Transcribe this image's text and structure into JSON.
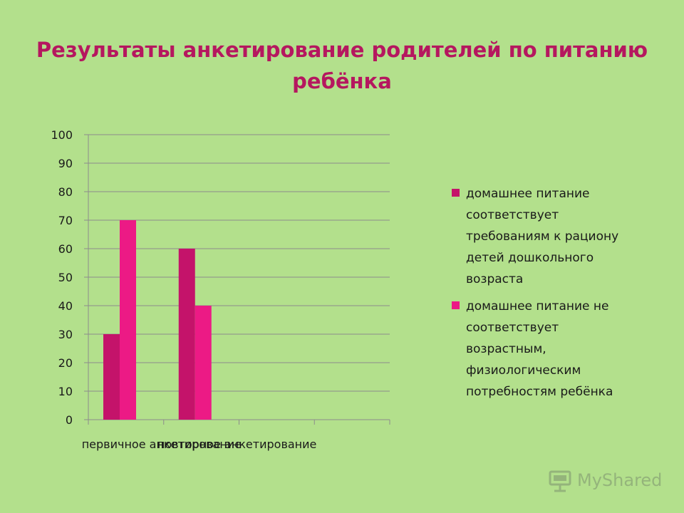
{
  "title_lines": [
    "Результаты анкетирование родителей по питанию",
    "ребёнка"
  ],
  "chart_data": {
    "type": "bar",
    "categories": [
      "первичное анкетирование",
      "повторное анкетирование",
      "",
      ""
    ],
    "series": [
      {
        "name": "домашнее питание соответствует требованиям к рациону детей дошкольного возраста",
        "values": [
          30,
          60,
          null,
          null
        ],
        "color": "#c4136a"
      },
      {
        "name": "домашнее питание  не соответствует возрастным, физиологическим потребностям ребёнка",
        "values": [
          70,
          40,
          null,
          null
        ],
        "color": "#ec1a85"
      }
    ],
    "ylim": [
      0,
      100
    ],
    "yticks": [
      0,
      10,
      20,
      30,
      40,
      50,
      60,
      70,
      80,
      90,
      100
    ],
    "grid": true,
    "legend": "right"
  },
  "legend_lines": [
    [
      "домашнее питание",
      "соответствует",
      "требованиям к рациону",
      "детей дошкольного",
      "возраста"
    ],
    [
      "домашнее питание  не",
      "соответствует",
      "возрастным,",
      "физиологическим",
      "потребностям ребёнка"
    ]
  ],
  "watermark": "MyShared"
}
